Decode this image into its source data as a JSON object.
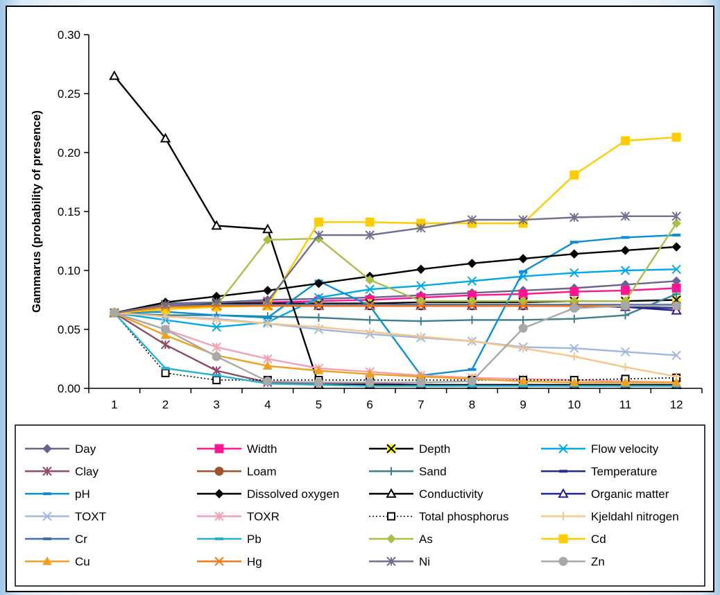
{
  "chart_data": {
    "type": "line",
    "ylabel": "Gammarus (probability of presence)",
    "xlabel": "",
    "x": [
      1,
      2,
      3,
      4,
      5,
      6,
      7,
      8,
      9,
      10,
      11,
      12
    ],
    "ylim": [
      0,
      0.3
    ],
    "yticks": [
      "0.00",
      "0.05",
      "0.10",
      "0.15",
      "0.20",
      "0.25",
      "0.30"
    ],
    "grid": false,
    "legend_position": "bottom",
    "series": [
      {
        "name": "Day",
        "color": "#66648f",
        "marker": "diamond",
        "values": [
          0.064,
          0.072,
          0.073,
          0.075,
          0.076,
          0.077,
          0.079,
          0.081,
          0.083,
          0.085,
          0.088,
          0.091
        ]
      },
      {
        "name": "Width",
        "color": "#ff1493",
        "marker": "square",
        "values": [
          0.064,
          0.071,
          0.072,
          0.073,
          0.074,
          0.075,
          0.077,
          0.079,
          0.08,
          0.082,
          0.083,
          0.085
        ]
      },
      {
        "name": "Depth",
        "color": "#000000",
        "marker": "xbox",
        "values": [
          0.064,
          0.071,
          0.072,
          0.072,
          0.072,
          0.072,
          0.073,
          0.073,
          0.073,
          0.074,
          0.074,
          0.075
        ]
      },
      {
        "name": "Flow velocity",
        "color": "#00a8e8",
        "marker": "x",
        "values": [
          0.064,
          0.058,
          0.052,
          0.056,
          0.077,
          0.084,
          0.087,
          0.091,
          0.095,
          0.098,
          0.1,
          0.101
        ]
      },
      {
        "name": "Clay",
        "color": "#8f4a6a",
        "marker": "star",
        "values": [
          0.064,
          0.037,
          0.015,
          0.005,
          0.004,
          0.004,
          0.003,
          0.003,
          0.003,
          0.003,
          0.003,
          0.003
        ]
      },
      {
        "name": "Loam",
        "color": "#a0522d",
        "marker": "circle",
        "values": [
          0.064,
          0.069,
          0.07,
          0.07,
          0.07,
          0.07,
          0.07,
          0.07,
          0.07,
          0.07,
          0.07,
          0.07
        ]
      },
      {
        "name": "Sand",
        "color": "#3c7f8f",
        "marker": "plus",
        "values": [
          0.064,
          0.062,
          0.062,
          0.061,
          0.06,
          0.058,
          0.057,
          0.058,
          0.058,
          0.059,
          0.062,
          0.08
        ]
      },
      {
        "name": "Temperature",
        "color": "#1f2d8a",
        "marker": "dash",
        "values": [
          0.064,
          0.07,
          0.071,
          0.071,
          0.071,
          0.071,
          0.071,
          0.071,
          0.071,
          0.07,
          0.069,
          0.068
        ]
      },
      {
        "name": "pH",
        "color": "#0a8fd4",
        "marker": "dash",
        "values": [
          0.064,
          0.065,
          0.062,
          0.06,
          0.091,
          0.07,
          0.011,
          0.016,
          0.099,
          0.124,
          0.128,
          0.13
        ]
      },
      {
        "name": "Dissolved oxygen",
        "color": "#000000",
        "marker": "diamond",
        "values": [
          0.064,
          0.073,
          0.078,
          0.083,
          0.089,
          0.095,
          0.101,
          0.106,
          0.11,
          0.114,
          0.117,
          0.12
        ]
      },
      {
        "name": "Conductivity",
        "color": "#000000",
        "marker": "triangle-open",
        "values": [
          0.265,
          0.212,
          0.138,
          0.135,
          0.003,
          0.003,
          0.003,
          0.003,
          0.003,
          0.003,
          0.003,
          0.003
        ]
      },
      {
        "name": "Organic matter",
        "color": "#23238f",
        "marker": "triangle-open",
        "values": [
          0.064,
          0.07,
          0.07,
          0.07,
          0.07,
          0.07,
          0.07,
          0.07,
          0.07,
          0.07,
          0.069,
          0.066
        ]
      },
      {
        "name": "TOXT",
        "color": "#9fb8e0",
        "marker": "x",
        "values": [
          0.064,
          0.061,
          0.059,
          0.055,
          0.05,
          0.046,
          0.043,
          0.04,
          0.035,
          0.034,
          0.031,
          0.028
        ]
      },
      {
        "name": "TOXR",
        "color": "#f4a0b0",
        "marker": "star",
        "values": [
          0.064,
          0.05,
          0.035,
          0.025,
          0.017,
          0.014,
          0.011,
          0.009,
          0.008,
          0.007,
          0.006,
          0.005
        ]
      },
      {
        "name": "Total phosphorus",
        "color": "#000000",
        "marker": "square-open",
        "values": [
          0.064,
          0.013,
          0.007,
          0.007,
          0.007,
          0.007,
          0.007,
          0.007,
          0.007,
          0.007,
          0.008,
          0.009
        ]
      },
      {
        "name": "Kjeldahl nitrogen",
        "color": "#f5c58a",
        "marker": "plus",
        "values": [
          0.064,
          0.061,
          0.058,
          0.055,
          0.052,
          0.048,
          0.044,
          0.04,
          0.034,
          0.027,
          0.018,
          0.01
        ]
      },
      {
        "name": "Cr",
        "color": "#3f6fb4",
        "marker": "dash",
        "values": [
          0.064,
          0.07,
          0.071,
          0.071,
          0.071,
          0.071,
          0.071,
          0.071,
          0.071,
          0.071,
          0.071,
          0.071
        ]
      },
      {
        "name": "Pb",
        "color": "#27b0d6",
        "marker": "dash",
        "values": [
          0.064,
          0.017,
          0.011,
          0.004,
          0.003,
          0.002,
          0.002,
          0.002,
          0.002,
          0.002,
          0.002,
          0.002
        ]
      },
      {
        "name": "As",
        "color": "#a8bf4a",
        "marker": "diamond",
        "values": [
          0.064,
          0.067,
          0.07,
          0.126,
          0.127,
          0.092,
          0.074,
          0.074,
          0.074,
          0.074,
          0.074,
          0.14
        ]
      },
      {
        "name": "Cd",
        "color": "#ffcc00",
        "marker": "square",
        "values": [
          0.064,
          0.067,
          0.069,
          0.07,
          0.141,
          0.141,
          0.14,
          0.14,
          0.14,
          0.181,
          0.21,
          0.213
        ]
      },
      {
        "name": "Cu",
        "color": "#f0a020",
        "marker": "triangle",
        "values": [
          0.064,
          0.045,
          0.028,
          0.019,
          0.015,
          0.012,
          0.01,
          0.008,
          0.006,
          0.005,
          0.005,
          0.005
        ]
      },
      {
        "name": "Hg",
        "color": "#f07818",
        "marker": "x",
        "values": [
          0.064,
          0.069,
          0.07,
          0.07,
          0.07,
          0.07,
          0.07,
          0.07,
          0.07,
          0.07,
          0.07,
          0.07
        ]
      },
      {
        "name": "Ni",
        "color": "#6f6f8f",
        "marker": "star",
        "values": [
          0.064,
          0.071,
          0.073,
          0.074,
          0.13,
          0.13,
          0.136,
          0.143,
          0.143,
          0.145,
          0.146,
          0.146
        ]
      },
      {
        "name": "Zn",
        "color": "#a8a8a8",
        "marker": "circle",
        "values": [
          0.064,
          0.05,
          0.027,
          0.006,
          0.005,
          0.005,
          0.005,
          0.006,
          0.051,
          0.068,
          0.07,
          0.07
        ]
      }
    ]
  }
}
